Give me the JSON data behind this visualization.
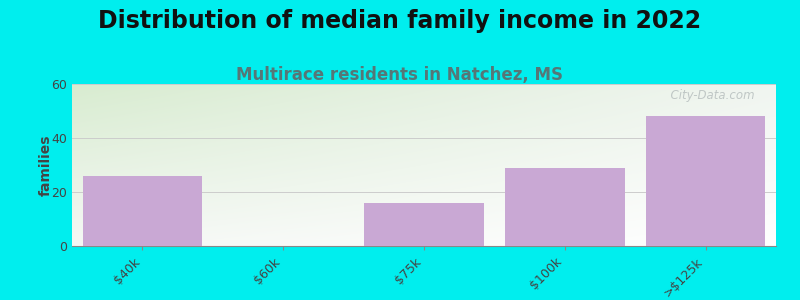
{
  "title": "Distribution of median family income in 2022",
  "subtitle": "Multirace residents in Natchez, MS",
  "categories": [
    "$40k",
    "$60k",
    "$75k",
    "$100k",
    ">$125k"
  ],
  "values": [
    26,
    0,
    16,
    29,
    48
  ],
  "bar_color": "#c9a8d4",
  "background_color": "#00eeee",
  "plot_bg_color_topleft": "#d8ecd0",
  "plot_bg_color_right": "#f5f5f5",
  "ylabel": "families",
  "ylim": [
    0,
    60
  ],
  "yticks": [
    0,
    20,
    40,
    60
  ],
  "title_fontsize": 17,
  "subtitle_fontsize": 12,
  "subtitle_color": "#557777",
  "ylabel_fontsize": 10,
  "tick_fontsize": 9,
  "watermark": "  City-Data.com",
  "grid_color": "#cccccc",
  "axis_color": "#888888"
}
